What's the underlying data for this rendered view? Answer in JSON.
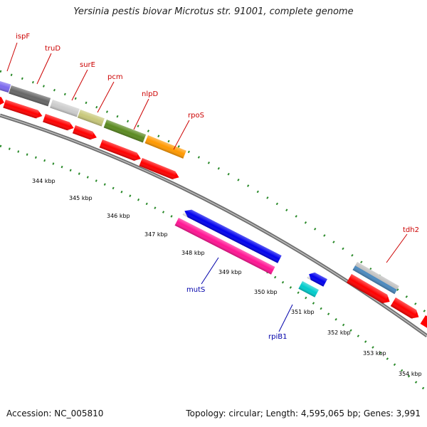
{
  "title": "Yersinia pestis biovar Microtus str. 91001, complete genome",
  "footer": {
    "accession": "Accession: NC_005810",
    "topology": "Topology: circular; Length: 4,595,065 bp; Genes: 3,991"
  },
  "kbp_ticks": [
    "344 kbp",
    "345 kbp",
    "346 kbp",
    "347 kbp",
    "348 kbp",
    "349 kbp",
    "350 kbp",
    "351 kbp",
    "352 kbp",
    "353 kbp",
    "354 kbp"
  ],
  "genes_outer": [
    {
      "name": "ispF",
      "color": "#cc0000"
    },
    {
      "name": "truD",
      "color": "#cc0000"
    },
    {
      "name": "surE",
      "color": "#cc0000"
    },
    {
      "name": "pcm",
      "color": "#cc0000"
    },
    {
      "name": "nlpD",
      "color": "#cc0000"
    },
    {
      "name": "rpoS",
      "color": "#cc0000"
    },
    {
      "name": "tdh2",
      "color": "#cc0000"
    }
  ],
  "genes_inner": [
    {
      "name": "mutS",
      "color": "#0000aa"
    },
    {
      "name": "rpiB1",
      "color": "#0000aa"
    }
  ],
  "colors": {
    "backbone": "#888888",
    "outer_dots": "#2a8a2a",
    "inner_dots": "#2a8a2a",
    "cds_red": "#ff0000",
    "mutS_blue": "#0000ee",
    "mutS_pink": "#ff1493",
    "rpiB1_blue": "#0000ee",
    "rpiB1_cyan": "#00cccc",
    "ispF_purple": "#7b68ee",
    "truD_gray": "#666666",
    "surE_lightgray": "#cccccc",
    "pcm_khaki": "#c8c87a",
    "nlpD_olive": "#5a8a20",
    "rpoS_orange": "#ff9900",
    "tdh2_gray": "#bbbbbb",
    "tdh2_steel": "#4a8ac0"
  }
}
